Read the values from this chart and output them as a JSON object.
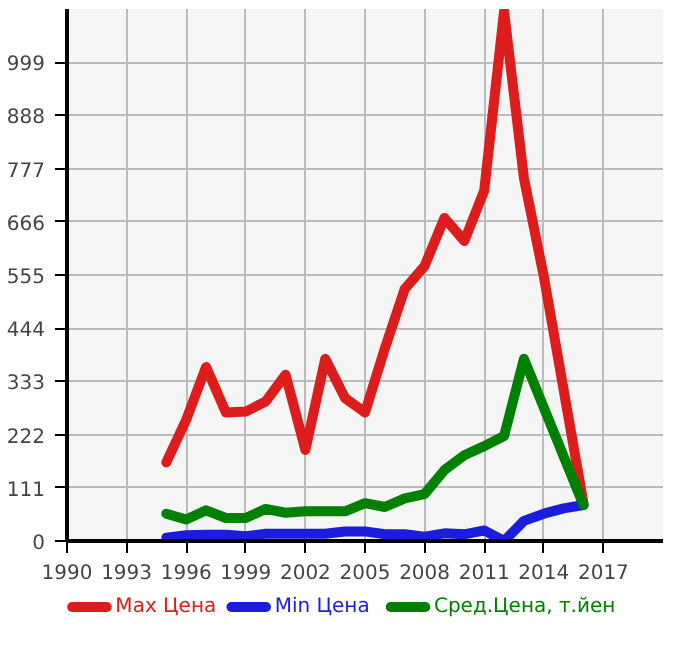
{
  "chart_data": {
    "type": "line",
    "xlim": [
      1990,
      2020
    ],
    "ylim": [
      0,
      1110
    ],
    "xticks": [
      1990,
      1993,
      1996,
      1999,
      2002,
      2005,
      2008,
      2011,
      2014,
      2017
    ],
    "yticks": [
      0,
      111,
      222,
      333,
      444,
      555,
      666,
      777,
      888,
      999
    ],
    "grid": true,
    "legend": "bottom",
    "line_style": "solid",
    "marker": "none",
    "series": [
      {
        "name": "Max Цена",
        "color": "#dd1c1c",
        "x": [
          1995,
          1996,
          1997,
          1998,
          1999,
          2000,
          2001,
          2002,
          2003,
          2004,
          2005,
          2006,
          2007,
          2008,
          2009,
          2010,
          2011,
          2012,
          2013,
          2014,
          2016
        ],
        "values": [
          164,
          253,
          363,
          268,
          270,
          291,
          347,
          190,
          380,
          298,
          268,
          402,
          526,
          574,
          674,
          626,
          731,
          1105,
          757,
          552,
          78
        ]
      },
      {
        "name": "Min Цена",
        "color": "#1c1cdd",
        "x": [
          1995,
          1996,
          1997,
          1998,
          1999,
          2000,
          2001,
          2002,
          2003,
          2004,
          2005,
          2006,
          2007,
          2008,
          2009,
          2010,
          2011,
          2012,
          2013,
          2014,
          2015,
          2016
        ],
        "values": [
          7,
          12,
          13,
          13,
          10,
          15,
          15,
          15,
          15,
          20,
          20,
          14,
          14,
          9,
          16,
          14,
          22,
          0,
          42,
          57,
          68,
          75
        ]
      },
      {
        "name": "Сред.Цена, т.йен",
        "color": "#008000",
        "x": [
          1995,
          1996,
          1997,
          1998,
          1999,
          2000,
          2001,
          2002,
          2003,
          2004,
          2005,
          2006,
          2007,
          2008,
          2009,
          2010,
          2011,
          2012,
          2013,
          2016
        ],
        "values": [
          57,
          45,
          64,
          48,
          48,
          67,
          59,
          62,
          62,
          62,
          79,
          71,
          89,
          98,
          148,
          179,
          198,
          219,
          380,
          75
        ]
      }
    ]
  }
}
